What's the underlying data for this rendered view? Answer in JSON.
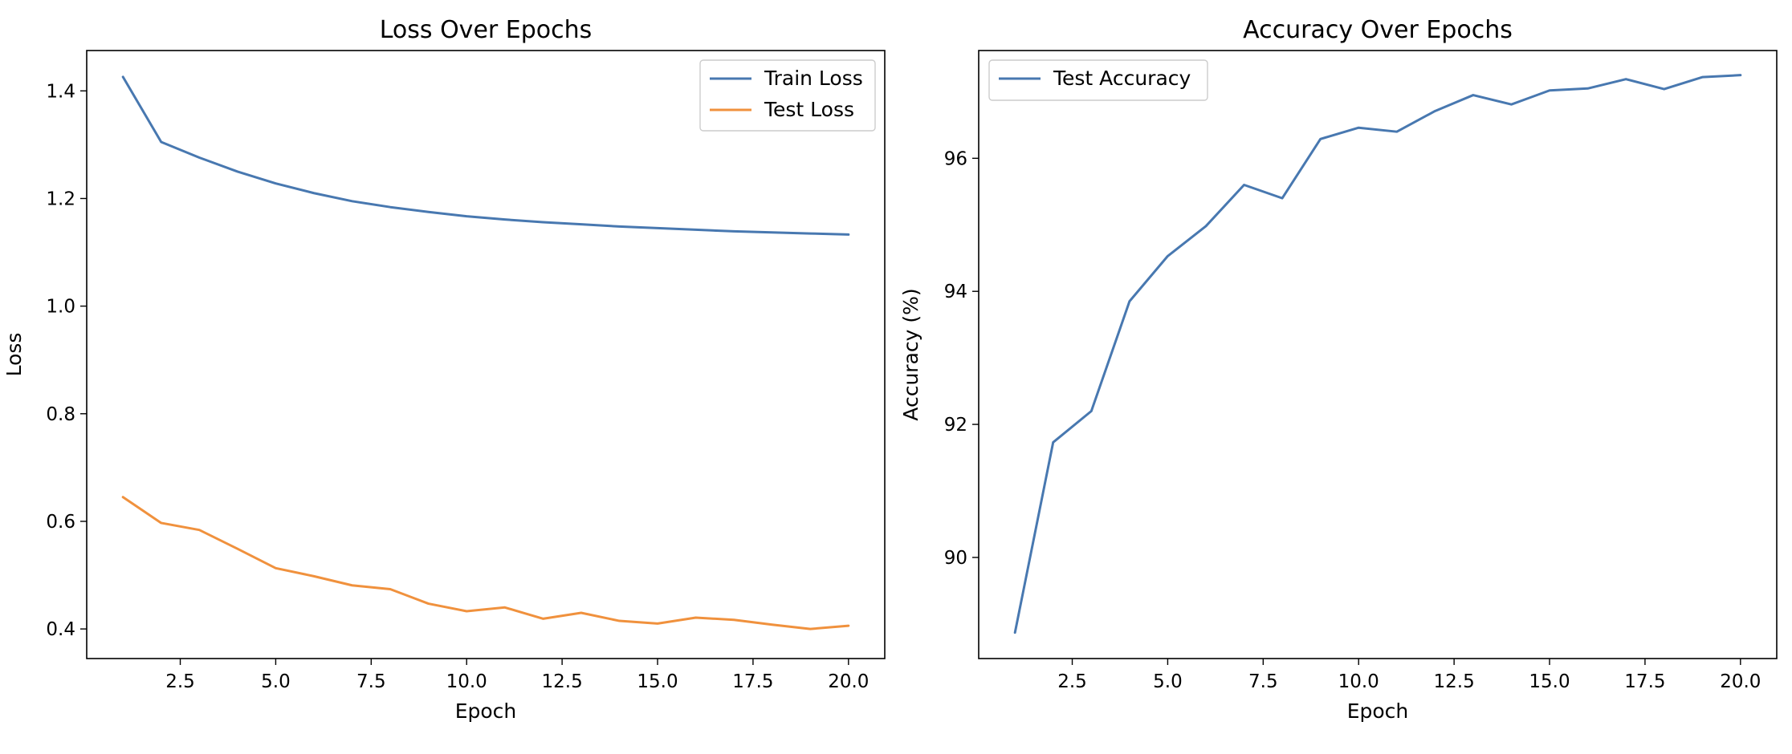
{
  "chart_data": [
    {
      "type": "line",
      "title": "Loss Over Epochs",
      "xlabel": "Epoch",
      "ylabel": "Loss",
      "xlim": [
        0.05,
        20.95
      ],
      "ylim": [
        0.345,
        1.475
      ],
      "xticks": [
        2.5,
        5.0,
        7.5,
        10.0,
        12.5,
        15.0,
        17.5,
        20.0
      ],
      "yticks": [
        0.4,
        0.6,
        0.8,
        1.0,
        1.2,
        1.4
      ],
      "grid": false,
      "legend": "upper right",
      "x": [
        1,
        2,
        3,
        4,
        5,
        6,
        7,
        8,
        9,
        10,
        11,
        12,
        13,
        14,
        15,
        16,
        17,
        18,
        19,
        20
      ],
      "series": [
        {
          "name": "Train Loss",
          "color": "#4878b0",
          "values": [
            1.426,
            1.305,
            1.276,
            1.25,
            1.228,
            1.21,
            1.195,
            1.184,
            1.175,
            1.167,
            1.161,
            1.156,
            1.152,
            1.148,
            1.145,
            1.142,
            1.139,
            1.137,
            1.135,
            1.133
          ]
        },
        {
          "name": "Test Loss",
          "color": "#f0913d",
          "values": [
            0.645,
            0.597,
            0.584,
            0.549,
            0.513,
            0.498,
            0.481,
            0.474,
            0.447,
            0.433,
            0.44,
            0.419,
            0.43,
            0.415,
            0.41,
            0.421,
            0.417,
            0.408,
            0.4,
            0.406
          ]
        }
      ]
    },
    {
      "type": "line",
      "title": "Accuracy Over Epochs",
      "xlabel": "Epoch",
      "ylabel": "Accuracy (%)",
      "xlim": [
        0.05,
        20.95
      ],
      "ylim": [
        88.48,
        97.62
      ],
      "xticks": [
        2.5,
        5.0,
        7.5,
        10.0,
        12.5,
        15.0,
        17.5,
        20.0
      ],
      "yticks": [
        90,
        92,
        94,
        96
      ],
      "grid": false,
      "legend": "upper left",
      "x": [
        1,
        2,
        3,
        4,
        5,
        6,
        7,
        8,
        9,
        10,
        11,
        12,
        13,
        14,
        15,
        16,
        17,
        18,
        19,
        20
      ],
      "series": [
        {
          "name": "Test Accuracy",
          "color": "#4878b0",
          "values": [
            88.87,
            91.73,
            92.2,
            93.85,
            94.53,
            94.98,
            95.6,
            95.4,
            96.29,
            96.46,
            96.4,
            96.71,
            96.95,
            96.81,
            97.02,
            97.05,
            97.19,
            97.04,
            97.22,
            97.25
          ]
        }
      ]
    }
  ]
}
